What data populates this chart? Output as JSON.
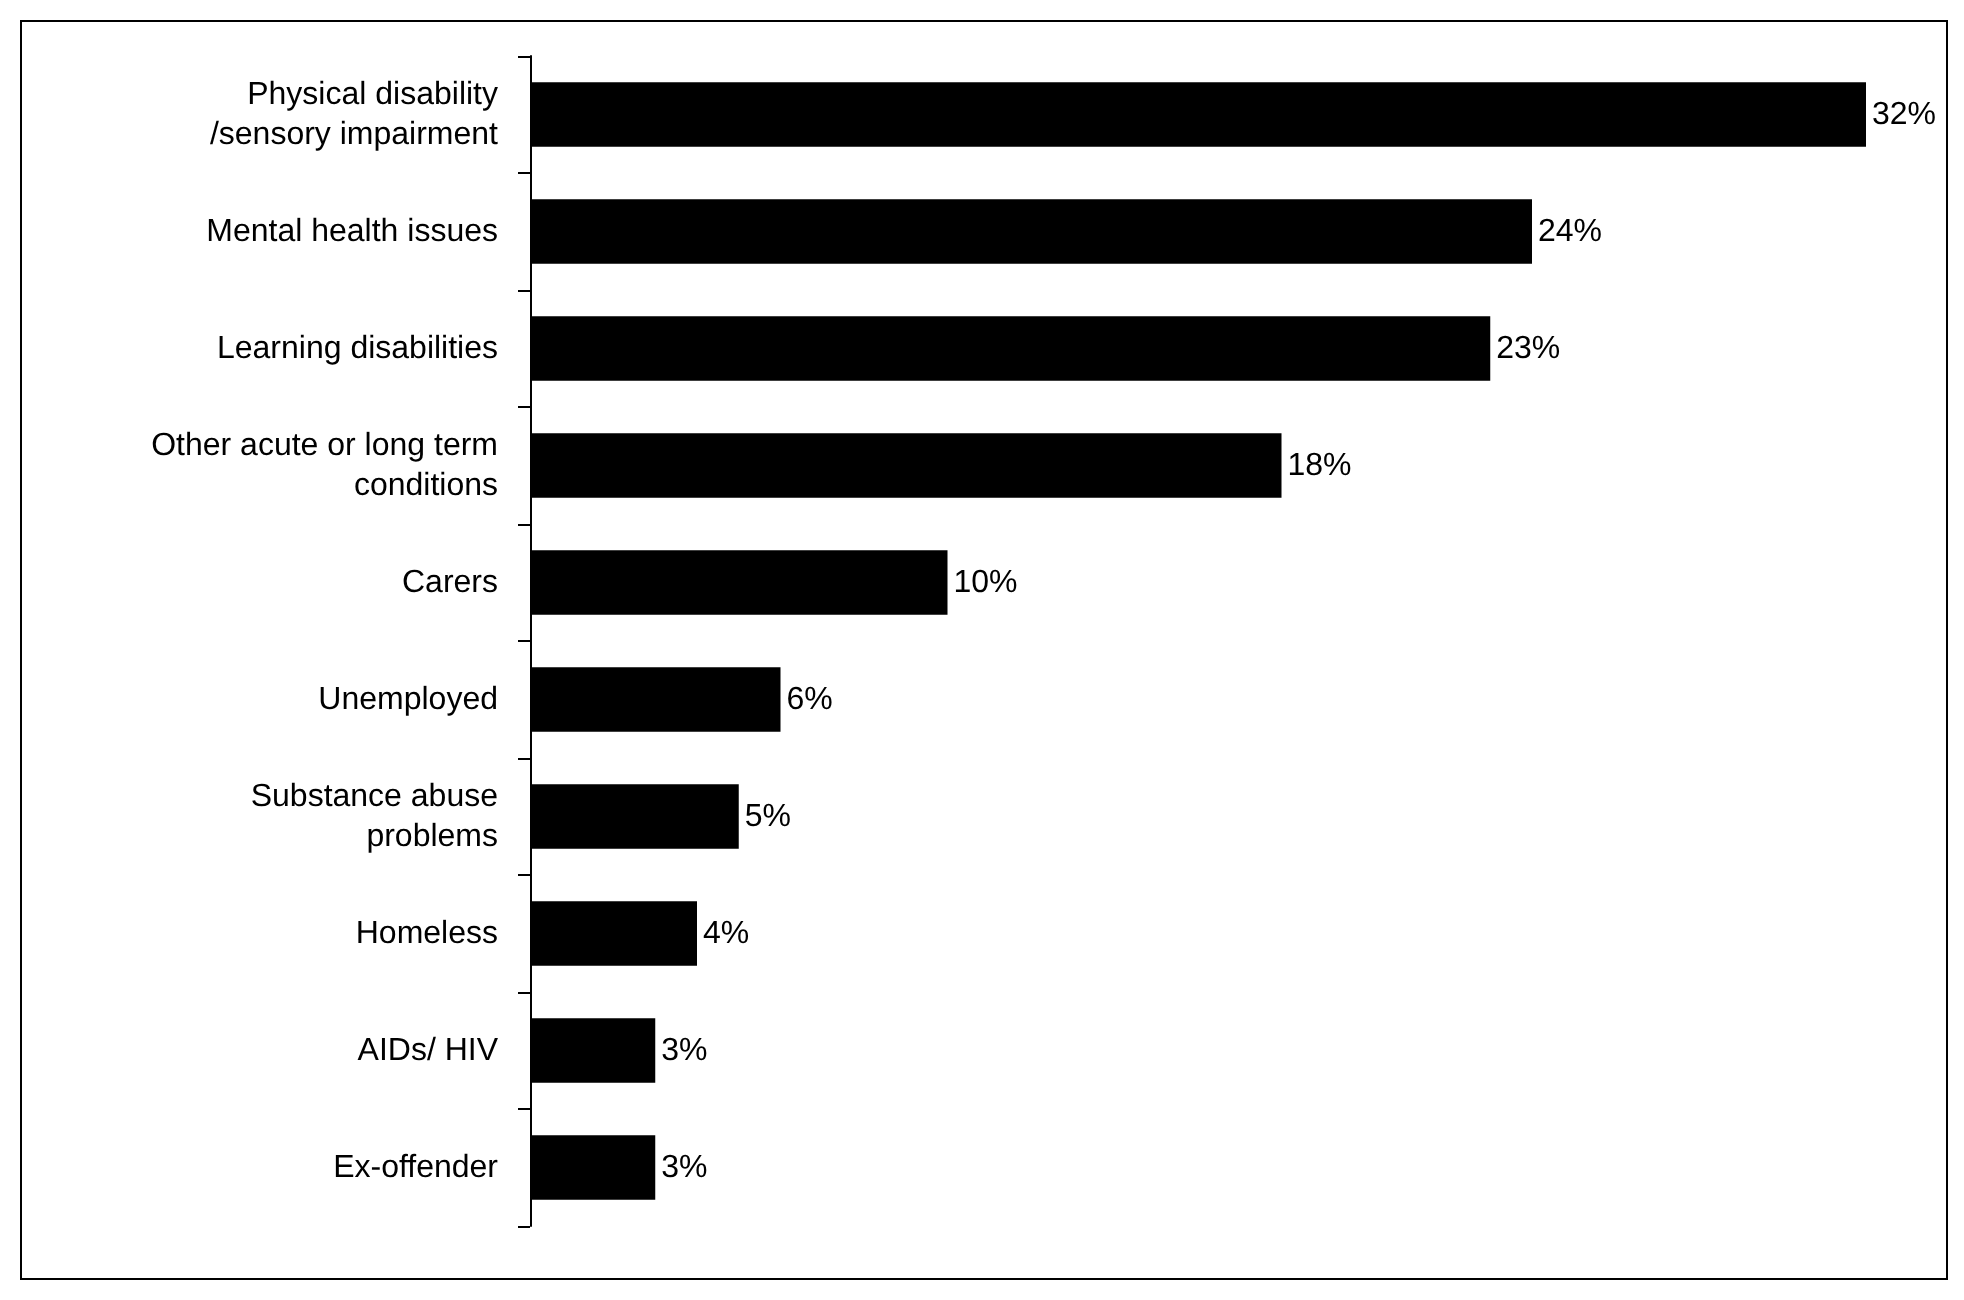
{
  "chart_data": {
    "type": "bar",
    "orientation": "horizontal",
    "categories": [
      "Physical disability\n/sensory impairment",
      "Mental health issues",
      "Learning disabilities",
      "Other acute or long term\nconditions",
      "Carers",
      "Unemployed",
      "Substance abuse\nproblems",
      "Homeless",
      "AIDs/ HIV",
      "Ex-offender"
    ],
    "values": [
      32,
      24,
      23,
      18,
      10,
      6,
      5,
      4,
      3,
      3
    ],
    "value_labels": [
      "32%",
      "24%",
      "23%",
      "18%",
      "10%",
      "6%",
      "5%",
      "4%",
      "3%",
      "3%"
    ],
    "color": "#000000",
    "xlim": [
      0,
      32
    ]
  }
}
